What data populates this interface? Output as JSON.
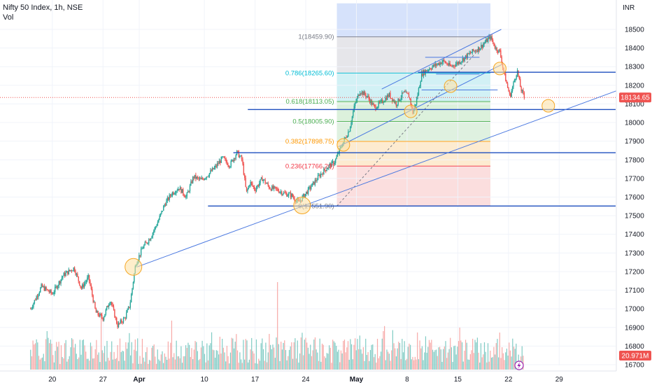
{
  "header": {
    "title": "Nifty 50 Index, 1h, NSE",
    "volume_label": "Vol",
    "currency": "INR"
  },
  "colors": {
    "up": "#26a69a",
    "down": "#ef5350",
    "vol_up": "#80cbc4",
    "vol_down": "#f7a9a7",
    "level_line": "#1e4fbf",
    "trend_line": "#4a78e0",
    "circle_fill": "#fde0a0",
    "circle_stroke": "#f5a623",
    "price_tag": "#ef5350"
  },
  "chart_data": {
    "type": "candlestick",
    "title": "Nifty 50 Index, 1h, NSE",
    "ylabel": "INR",
    "ylim": [
      16650,
      18620
    ],
    "y_ticks": [
      16700,
      16800,
      16900,
      17000,
      17100,
      17200,
      17300,
      17400,
      17500,
      17600,
      17700,
      17800,
      17900,
      18000,
      18100,
      18200,
      18300,
      18400,
      18500
    ],
    "x_ticks": [
      {
        "label": "20",
        "day": -12
      },
      {
        "label": "27",
        "day": -5
      },
      {
        "label": "Apr",
        "day": 0
      },
      {
        "label": "10",
        "day": 9
      },
      {
        "label": "17",
        "day": 16
      },
      {
        "label": "24",
        "day": 23
      },
      {
        "label": "May",
        "day": 30
      },
      {
        "label": "8",
        "day": 37
      },
      {
        "label": "15",
        "day": 44
      },
      {
        "label": "22",
        "day": 51
      },
      {
        "label": "29",
        "day": 58
      }
    ],
    "price_path": [
      [
        -15,
        17000
      ],
      [
        -13.5,
        17120
      ],
      [
        -12,
        17080
      ],
      [
        -10.5,
        17180
      ],
      [
        -9,
        17220
      ],
      [
        -8,
        17110
      ],
      [
        -7,
        17170
      ],
      [
        -6,
        16980
      ],
      [
        -5,
        16950
      ],
      [
        -4,
        17050
      ],
      [
        -3,
        16910
      ],
      [
        -2,
        16950
      ],
      [
        -1.3,
        17020
      ],
      [
        -1,
        17100
      ],
      [
        -0.5,
        17240
      ],
      [
        0.5,
        17330
      ],
      [
        1.5,
        17380
      ],
      [
        2.5,
        17460
      ],
      [
        3.5,
        17560
      ],
      [
        4.5,
        17620
      ],
      [
        5.5,
        17650
      ],
      [
        6.5,
        17600
      ],
      [
        7.5,
        17710
      ],
      [
        8.5,
        17690
      ],
      [
        9.5,
        17720
      ],
      [
        10.5,
        17760
      ],
      [
        11.5,
        17810
      ],
      [
        12.5,
        17770
      ],
      [
        13.5,
        17840
      ],
      [
        14.2,
        17800
      ],
      [
        14.8,
        17620
      ],
      [
        15.3,
        17680
      ],
      [
        16,
        17640
      ],
      [
        17,
        17700
      ],
      [
        18,
        17650
      ],
      [
        19,
        17640
      ],
      [
        20,
        17620
      ],
      [
        21,
        17610
      ],
      [
        22,
        17570
      ],
      [
        23,
        17620
      ],
      [
        24,
        17670
      ],
      [
        25,
        17720
      ],
      [
        26,
        17760
      ],
      [
        27,
        17790
      ],
      [
        28,
        17880
      ],
      [
        29,
        17960
      ],
      [
        29.8,
        18100
      ],
      [
        30.5,
        18170
      ],
      [
        31.5,
        18140
      ],
      [
        32.5,
        18080
      ],
      [
        33.5,
        18110
      ],
      [
        34.5,
        18150
      ],
      [
        35.5,
        18100
      ],
      [
        36.5,
        18160
      ],
      [
        37.3,
        18140
      ],
      [
        37.8,
        18050
      ],
      [
        38.3,
        18120
      ],
      [
        39,
        18260
      ],
      [
        40,
        18290
      ],
      [
        41,
        18310
      ],
      [
        42,
        18330
      ],
      [
        43,
        18300
      ],
      [
        44,
        18320
      ],
      [
        45,
        18350
      ],
      [
        46,
        18380
      ],
      [
        47,
        18400
      ],
      [
        48,
        18440
      ],
      [
        48.5,
        18460
      ],
      [
        49.2,
        18400
      ],
      [
        49.8,
        18380
      ],
      [
        50.3,
        18280
      ],
      [
        50.8,
        18200
      ],
      [
        51.2,
        18140
      ],
      [
        51.7,
        18210
      ],
      [
        52.2,
        18280
      ],
      [
        52.7,
        18180
      ],
      [
        53.2,
        18135
      ]
    ],
    "volume_bars": 420,
    "volume_ylim": [
      0,
      130
    ],
    "fibonacci": [
      {
        "label": "1(18459.90)",
        "value": 18459.9,
        "color": "#787b86"
      },
      {
        "label": "0.786(18265.60)",
        "value": 18265.6,
        "color": "#00bcd4"
      },
      {
        "label": "0.618(18113.05)",
        "value": 18113.05,
        "color": "#4caf50"
      },
      {
        "label": "0.5(18005.90)",
        "value": 18005.9,
        "color": "#4caf50"
      },
      {
        "label": "0.382(17898.75)",
        "value": 17898.75,
        "color": "#ff9800"
      },
      {
        "label": "0.236(17766.20)",
        "value": 17766.2,
        "color": "#f23645"
      },
      {
        "label": "0(17551.90)",
        "value": 17551.9,
        "color": "#787b86"
      }
    ],
    "fib_zones": [
      {
        "from": 18459.9,
        "to": 18640,
        "color": "#d6e2fb"
      },
      {
        "from": 18265.6,
        "to": 18459.9,
        "color": "#e6e6ea"
      },
      {
        "from": 18113.05,
        "to": 18265.6,
        "color": "#d2f1f5"
      },
      {
        "from": 18005.9,
        "to": 18113.05,
        "color": "#dcf1dc"
      },
      {
        "from": 17898.75,
        "to": 18005.9,
        "color": "#dff1e0"
      },
      {
        "from": 17766.2,
        "to": 17898.75,
        "color": "#fdebd0"
      },
      {
        "from": 17551.9,
        "to": 17766.2,
        "color": "#fbdede"
      }
    ],
    "fib_range_days": [
      27.3,
      48.5
    ],
    "horizontal_levels": [
      {
        "value": 18270,
        "from_day": 38.5,
        "to_day": 73
      },
      {
        "value": 18070,
        "from_day": 15,
        "to_day": 73
      },
      {
        "value": 17838,
        "from_day": 13,
        "to_day": 73
      },
      {
        "value": 17551.9,
        "from_day": 9.5,
        "to_day": 73
      }
    ],
    "trend_lines": [
      {
        "from": [
          -0.3,
          17225
        ],
        "to": [
          71.5,
          18250
        ]
      },
      {
        "from": [
          33.5,
          18180
        ],
        "to": [
          50,
          18500
        ]
      },
      {
        "from": [
          27.5,
          17870
        ],
        "to": [
          50,
          18310
        ]
      }
    ],
    "channel_marks": [
      {
        "value": 18350,
        "from_day": 39.5,
        "to_day": 47
      },
      {
        "value": 18260,
        "from_day": 41,
        "to_day": 47
      },
      {
        "value": 18175,
        "from_day": 39,
        "to_day": 49.5
      }
    ],
    "highlight_circles": [
      {
        "day": -0.8,
        "value": 17225
      },
      {
        "day": 22.5,
        "value": 17555
      },
      {
        "day": 28.2,
        "value": 17880
      },
      {
        "day": 37.5,
        "value": 18060
      },
      {
        "day": 43,
        "value": 18195
      },
      {
        "day": 49.8,
        "value": 18290
      },
      {
        "day": 56.5,
        "value": 18090
      }
    ],
    "current_price": {
      "value": 18134.65,
      "label": "18134.65"
    },
    "volume_label": "20.971M",
    "dotted_price_line": 18134.65
  }
}
